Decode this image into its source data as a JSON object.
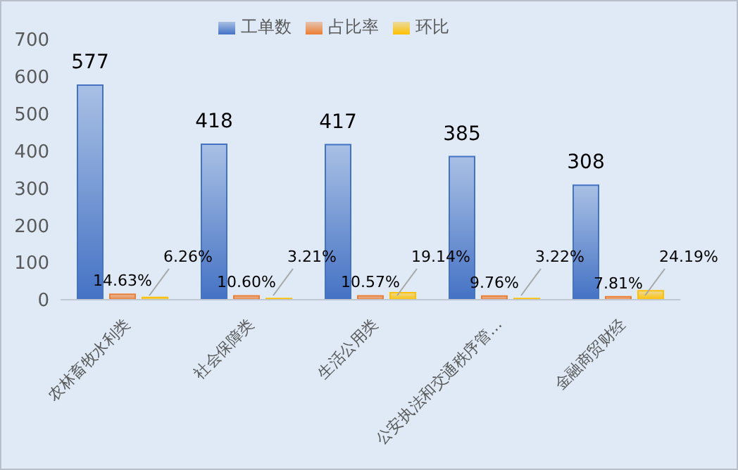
{
  "chart_data": {
    "type": "bar",
    "categories": [
      "农林畜牧水利类",
      "社会保障类",
      "生活公用类",
      "公安执法和交通秩序管…",
      "金融商贸财经"
    ],
    "series": [
      {
        "name": "工单数",
        "color": "#4472c4",
        "values": [
          577,
          418,
          417,
          385,
          308
        ],
        "data_labels": true
      },
      {
        "name": "占比率",
        "color": "#ed7d31",
        "values": [
          14.63,
          10.6,
          10.57,
          9.76,
          7.81
        ],
        "value_labels": [
          "14.63%",
          "10.60%",
          "10.57%",
          "9.76%",
          "7.81%"
        ]
      },
      {
        "name": "环比",
        "color": "#ffc000",
        "values": [
          6.26,
          3.21,
          19.14,
          3.22,
          24.19
        ],
        "value_labels": [
          "6.26%",
          "3.21%",
          "19.14%",
          "3.22%",
          "24.19%"
        ]
      }
    ],
    "ylim": [
      0,
      700
    ],
    "yticks": [
      0,
      100,
      200,
      300,
      400,
      500,
      600,
      700
    ],
    "grid": false,
    "legend": "top"
  }
}
